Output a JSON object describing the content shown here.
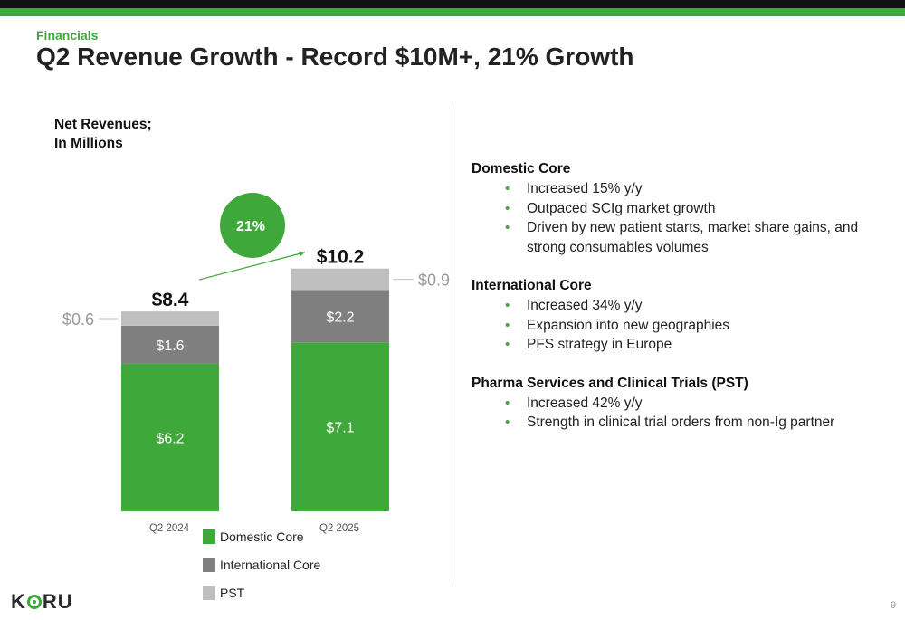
{
  "header": {
    "section": "Financials",
    "title": "Q2 Revenue Growth -  Record $10M+, 21% Growth"
  },
  "chart_heading": [
    "Net Revenues;",
    "In Millions"
  ],
  "chart_data": {
    "type": "bar",
    "stacked": true,
    "categories": [
      "Q2 2024",
      "Q2 2025"
    ],
    "series": [
      {
        "name": "Domestic Core",
        "values": [
          6.2,
          7.1
        ],
        "labels": [
          "$6.2",
          "$7.1"
        ],
        "color": "#3ea83b"
      },
      {
        "name": "International Core",
        "values": [
          1.6,
          2.2
        ],
        "labels": [
          "$1.6",
          "$2.2"
        ],
        "color": "#7f7f7f"
      },
      {
        "name": "PST",
        "values": [
          0.6,
          0.9
        ],
        "labels": [
          "$0.6",
          "$0.9"
        ],
        "color": "#bfbfbf"
      }
    ],
    "totals": [
      8.4,
      10.2
    ],
    "total_labels": [
      "$8.4",
      "$10.2"
    ],
    "growth_label": "21%",
    "legend_position": "bottom"
  },
  "bullets": [
    {
      "title": "Domestic Core",
      "items": [
        "Increased 15% y/y",
        "Outpaced SCIg market growth",
        "Driven by new patient starts, market share gains, and strong consumables volumes"
      ]
    },
    {
      "title": "International Core",
      "items": [
        "Increased 34% y/y",
        "Expansion into new geographies",
        "PFS strategy in Europe"
      ]
    },
    {
      "title": "Pharma Services and Clinical Trials (PST)",
      "items": [
        "Increased 42% y/y",
        "Strength in clinical trial orders from non-Ig partner"
      ]
    }
  ],
  "bullet_symbol": "•",
  "logo": {
    "left": "K",
    "right": "RU"
  },
  "page_number": "9",
  "colors": {
    "accent": "#3ea83b",
    "dark_bar": "#111111"
  }
}
